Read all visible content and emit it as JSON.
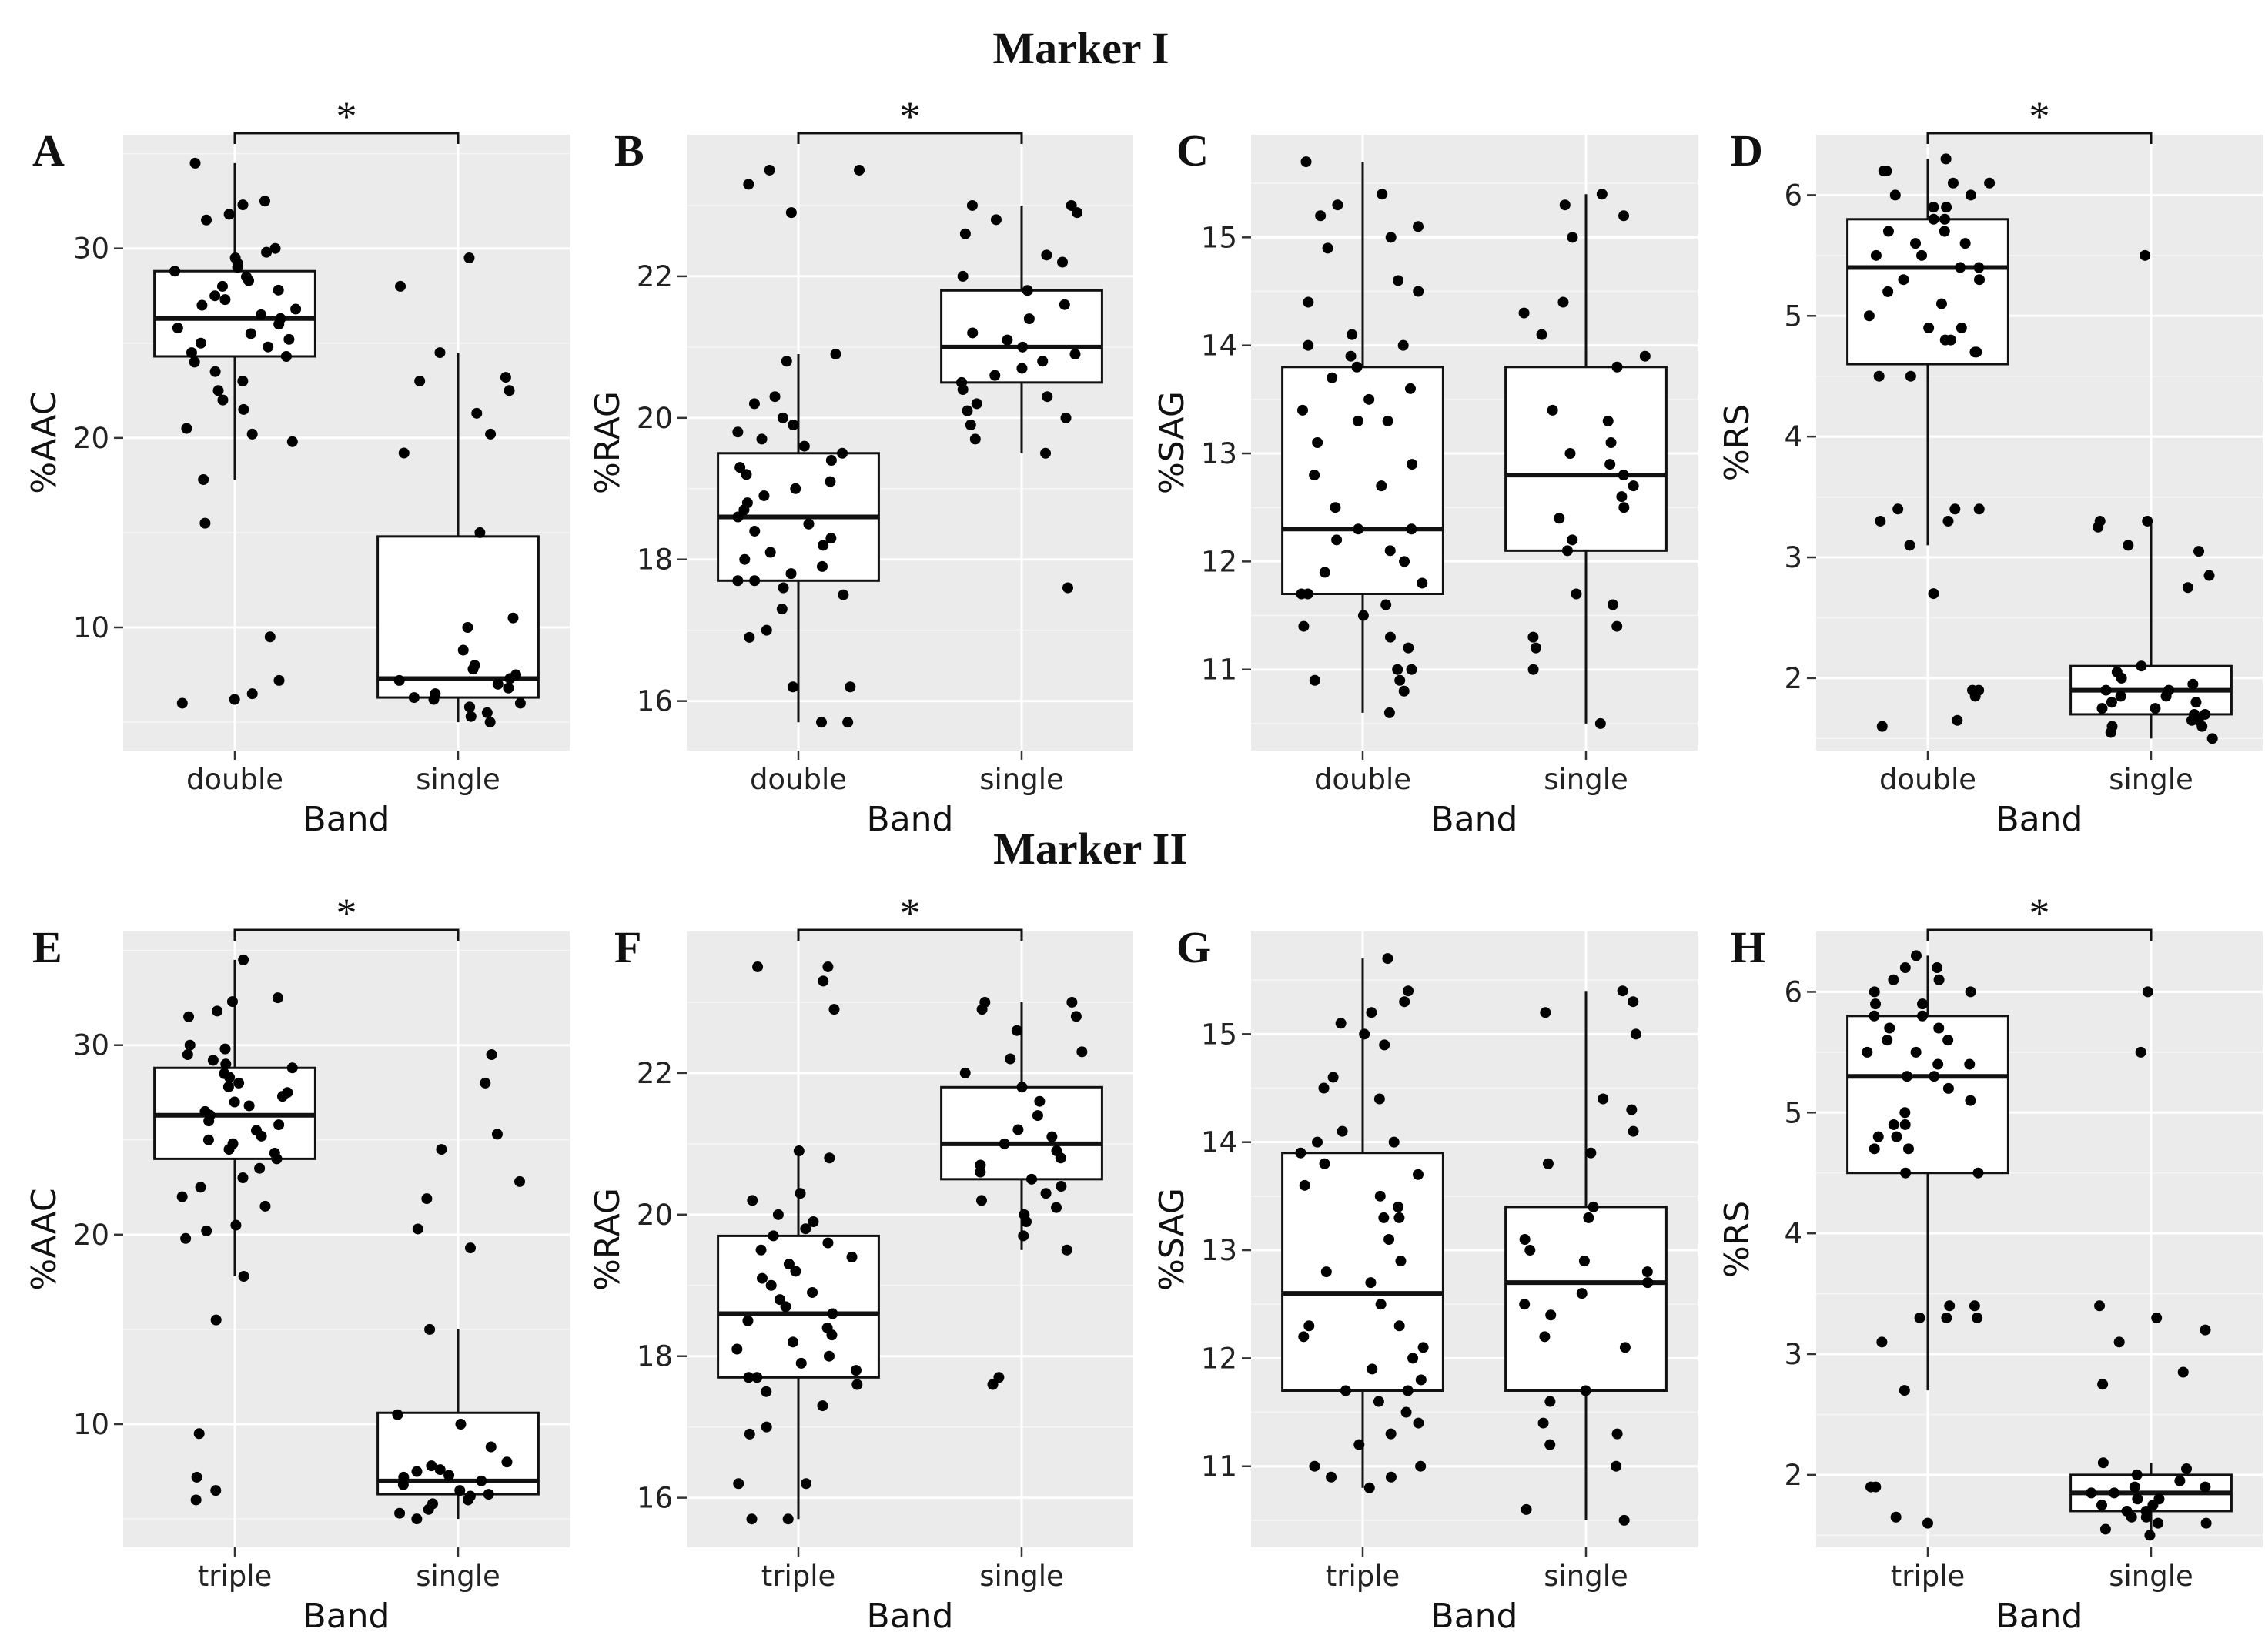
{
  "titles": {
    "marker1": "Marker I",
    "marker2": "Marker II"
  },
  "chart_data": [
    {
      "type": "box",
      "panel": "A",
      "row": 0,
      "col": 0,
      "ylabel": "%AAC",
      "xlabel": "Band",
      "categories": [
        "double",
        "single"
      ],
      "ylim": [
        3.5,
        36
      ],
      "yticks": [
        10,
        20,
        30
      ],
      "significance": "*",
      "boxes": [
        {
          "min": 17.8,
          "q1": 24.3,
          "median": 26.3,
          "q3": 28.8,
          "max": 34.5
        },
        {
          "min": 5.0,
          "q1": 6.3,
          "median": 7.3,
          "q3": 14.8,
          "max": 24.5
        }
      ],
      "points": [
        [
          34.5,
          32.5,
          32.3,
          31.8,
          31.5,
          30.0,
          29.8,
          29.5,
          29.2,
          29.0,
          28.8,
          28.5,
          28.3,
          28.0,
          27.8,
          27.5,
          27.3,
          27.0,
          26.8,
          26.5,
          26.3,
          26.0,
          25.8,
          25.5,
          25.2,
          25.0,
          24.8,
          24.5,
          24.3,
          24.0,
          23.5,
          23.0,
          22.5,
          22.0,
          21.5,
          20.5,
          20.2,
          19.8,
          17.8,
          15.5,
          9.5,
          7.2,
          6.5,
          6.0,
          6.2
        ],
        [
          29.5,
          28.0,
          24.5,
          23.2,
          23.0,
          22.5,
          21.3,
          20.2,
          19.2,
          15.0,
          10.5,
          10.0,
          8.8,
          8.0,
          7.8,
          7.5,
          7.3,
          7.2,
          7.0,
          6.8,
          6.5,
          6.3,
          6.0,
          5.8,
          5.5,
          5.3,
          5.0,
          5.8,
          6.2
        ]
      ]
    },
    {
      "type": "box",
      "panel": "B",
      "row": 0,
      "col": 1,
      "ylabel": "%RAG",
      "xlabel": "Band",
      "categories": [
        "double",
        "single"
      ],
      "ylim": [
        15.3,
        24.0
      ],
      "yticks": [
        16,
        18,
        20,
        22
      ],
      "significance": "*",
      "boxes": [
        {
          "min": 15.7,
          "q1": 17.7,
          "median": 18.6,
          "q3": 19.5,
          "max": 20.9
        },
        {
          "min": 19.5,
          "q1": 20.5,
          "median": 21.0,
          "q3": 21.8,
          "max": 23.0
        }
      ],
      "points": [
        [
          23.5,
          23.5,
          23.3,
          22.9,
          20.9,
          20.8,
          20.3,
          20.2,
          20.0,
          19.9,
          19.8,
          19.7,
          19.6,
          19.5,
          19.4,
          19.3,
          19.2,
          19.1,
          19.0,
          18.9,
          18.8,
          18.7,
          18.6,
          18.5,
          18.4,
          18.3,
          18.2,
          18.1,
          18.0,
          17.9,
          17.8,
          17.7,
          17.7,
          17.6,
          17.5,
          17.3,
          17.0,
          16.9,
          16.2,
          16.2,
          15.7,
          15.7
        ],
        [
          23.0,
          23.0,
          22.9,
          22.8,
          22.6,
          22.3,
          22.2,
          22.0,
          21.8,
          21.6,
          21.4,
          21.2,
          21.1,
          21.0,
          20.9,
          20.8,
          20.7,
          20.6,
          20.5,
          20.4,
          20.3,
          20.2,
          20.1,
          20.0,
          19.9,
          19.7,
          19.5,
          17.6
        ]
      ]
    },
    {
      "type": "box",
      "panel": "C",
      "row": 0,
      "col": 2,
      "ylabel": "%SAG",
      "xlabel": "Band",
      "categories": [
        "double",
        "single"
      ],
      "ylim": [
        10.25,
        15.95
      ],
      "yticks": [
        11,
        12,
        13,
        14,
        15
      ],
      "significance": "",
      "boxes": [
        {
          "min": 10.6,
          "q1": 11.7,
          "median": 12.3,
          "q3": 13.8,
          "max": 15.7
        },
        {
          "min": 10.5,
          "q1": 12.1,
          "median": 12.8,
          "q3": 13.8,
          "max": 15.4
        }
      ],
      "points": [
        [
          15.7,
          15.4,
          15.3,
          15.2,
          15.1,
          15.0,
          14.9,
          14.6,
          14.5,
          14.4,
          14.1,
          14.0,
          14.0,
          13.9,
          13.8,
          13.7,
          13.6,
          13.5,
          13.4,
          13.3,
          13.3,
          13.1,
          12.9,
          12.8,
          12.7,
          12.5,
          12.3,
          12.3,
          12.2,
          12.1,
          12.0,
          11.9,
          11.8,
          11.7,
          11.7,
          11.6,
          11.5,
          11.4,
          11.3,
          11.2,
          11.0,
          11.0,
          10.9,
          10.9,
          10.8,
          10.6
        ],
        [
          15.4,
          15.3,
          15.2,
          15.0,
          14.4,
          14.3,
          14.1,
          13.9,
          13.8,
          13.4,
          13.3,
          13.1,
          13.0,
          12.9,
          12.8,
          12.7,
          12.6,
          12.5,
          12.4,
          12.2,
          12.1,
          11.7,
          11.6,
          11.4,
          11.3,
          11.2,
          11.0,
          10.5
        ]
      ]
    },
    {
      "type": "box",
      "panel": "D",
      "row": 0,
      "col": 3,
      "ylabel": "%RS",
      "xlabel": "Band",
      "categories": [
        "double",
        "single"
      ],
      "ylim": [
        1.4,
        6.5
      ],
      "yticks": [
        2,
        3,
        4,
        5,
        6
      ],
      "significance": "*",
      "boxes": [
        {
          "min": 3.1,
          "q1": 4.6,
          "median": 5.4,
          "q3": 5.8,
          "max": 6.3
        },
        {
          "min": 1.5,
          "q1": 1.7,
          "median": 1.9,
          "q3": 2.1,
          "max": 3.3
        }
      ],
      "points": [
        [
          6.3,
          6.2,
          6.2,
          6.1,
          6.1,
          6.0,
          6.0,
          5.9,
          5.9,
          5.8,
          5.8,
          5.7,
          5.7,
          5.6,
          5.6,
          5.5,
          5.5,
          5.4,
          5.4,
          5.3,
          5.3,
          5.2,
          5.1,
          5.0,
          4.9,
          4.9,
          4.8,
          4.8,
          4.7,
          4.7,
          4.5,
          4.5,
          3.4,
          3.4,
          3.4,
          3.3,
          3.3,
          3.1,
          2.7,
          1.9,
          1.9,
          1.85,
          1.65,
          1.6
        ],
        [
          5.5,
          3.3,
          3.3,
          3.25,
          3.1,
          3.05,
          2.85,
          2.75,
          2.1,
          2.05,
          2.0,
          1.95,
          1.9,
          1.9,
          1.85,
          1.85,
          1.8,
          1.8,
          1.75,
          1.75,
          1.7,
          1.7,
          1.65,
          1.65,
          1.6,
          1.6,
          1.55,
          1.5
        ]
      ]
    },
    {
      "type": "box",
      "panel": "E",
      "row": 1,
      "col": 0,
      "ylabel": "%AAC",
      "xlabel": "Band",
      "categories": [
        "triple",
        "single"
      ],
      "ylim": [
        3.5,
        36
      ],
      "yticks": [
        10,
        20,
        30
      ],
      "significance": "*",
      "boxes": [
        {
          "min": 17.8,
          "q1": 24.0,
          "median": 26.3,
          "q3": 28.8,
          "max": 34.5
        },
        {
          "min": 5.0,
          "q1": 6.3,
          "median": 7.0,
          "q3": 10.6,
          "max": 15.0
        }
      ],
      "points": [
        [
          34.5,
          32.5,
          32.3,
          31.8,
          31.5,
          30.0,
          29.8,
          29.5,
          29.2,
          29.0,
          28.8,
          28.5,
          28.3,
          28.0,
          27.8,
          27.5,
          27.3,
          27.0,
          26.8,
          26.5,
          26.3,
          26.0,
          25.8,
          25.5,
          25.2,
          25.0,
          24.8,
          24.5,
          24.3,
          24.0,
          23.5,
          23.0,
          22.5,
          22.0,
          21.5,
          20.5,
          20.2,
          19.8,
          17.8,
          15.5,
          9.5,
          7.2,
          6.5,
          6.0
        ],
        [
          29.5,
          28.0,
          25.3,
          24.5,
          22.8,
          21.9,
          20.3,
          19.3,
          15.0,
          10.5,
          10.0,
          8.8,
          8.0,
          7.8,
          7.5,
          7.3,
          7.2,
          7.0,
          6.8,
          6.5,
          6.3,
          6.0,
          5.8,
          5.5,
          5.3,
          5.0,
          6.2,
          7.6
        ]
      ]
    },
    {
      "type": "box",
      "panel": "F",
      "row": 1,
      "col": 1,
      "ylabel": "%RAG",
      "xlabel": "Band",
      "categories": [
        "triple",
        "single"
      ],
      "ylim": [
        15.3,
        24.0
      ],
      "yticks": [
        16,
        18,
        20,
        22
      ],
      "significance": "*",
      "boxes": [
        {
          "min": 15.7,
          "q1": 17.7,
          "median": 18.6,
          "q3": 19.7,
          "max": 20.9
        },
        {
          "min": 19.5,
          "q1": 20.5,
          "median": 21.0,
          "q3": 21.8,
          "max": 23.0
        }
      ],
      "points": [
        [
          23.5,
          23.5,
          23.3,
          22.9,
          20.9,
          20.8,
          20.3,
          20.2,
          20.0,
          19.9,
          19.8,
          19.7,
          19.6,
          19.5,
          19.4,
          19.3,
          19.2,
          19.1,
          19.0,
          18.9,
          18.8,
          18.7,
          18.6,
          18.5,
          18.4,
          18.3,
          18.2,
          18.1,
          18.0,
          17.9,
          17.8,
          17.7,
          17.7,
          17.6,
          17.5,
          17.3,
          17.0,
          16.9,
          16.2,
          16.2,
          15.7,
          15.7
        ],
        [
          23.0,
          23.0,
          22.9,
          22.8,
          22.6,
          22.3,
          22.2,
          22.0,
          21.8,
          21.6,
          21.4,
          21.2,
          21.1,
          21.0,
          20.9,
          20.8,
          20.7,
          20.6,
          20.5,
          20.4,
          20.3,
          20.2,
          20.1,
          20.0,
          19.9,
          19.7,
          19.5,
          17.7,
          17.6
        ]
      ]
    },
    {
      "type": "box",
      "panel": "G",
      "row": 1,
      "col": 2,
      "ylabel": "%SAG",
      "xlabel": "Band",
      "categories": [
        "triple",
        "single"
      ],
      "ylim": [
        10.25,
        15.95
      ],
      "yticks": [
        11,
        12,
        13,
        14,
        15
      ],
      "significance": "",
      "boxes": [
        {
          "min": 10.8,
          "q1": 11.7,
          "median": 12.6,
          "q3": 13.9,
          "max": 15.7
        },
        {
          "min": 10.5,
          "q1": 11.7,
          "median": 12.7,
          "q3": 13.4,
          "max": 15.4
        }
      ],
      "points": [
        [
          15.7,
          15.4,
          15.3,
          15.2,
          15.1,
          15.0,
          14.9,
          14.6,
          14.5,
          14.4,
          14.1,
          14.0,
          14.0,
          13.9,
          13.8,
          13.7,
          13.6,
          13.5,
          13.4,
          13.3,
          13.3,
          13.1,
          12.9,
          12.8,
          12.7,
          12.5,
          12.3,
          12.3,
          12.2,
          12.1,
          12.0,
          11.9,
          11.8,
          11.7,
          11.7,
          11.6,
          11.5,
          11.4,
          11.3,
          11.2,
          11.0,
          11.0,
          10.9,
          10.9,
          10.8
        ],
        [
          15.4,
          15.3,
          15.2,
          15.0,
          14.4,
          14.3,
          14.1,
          13.9,
          13.8,
          13.4,
          13.3,
          13.1,
          13.0,
          12.9,
          12.8,
          12.7,
          12.6,
          12.5,
          12.4,
          12.2,
          12.1,
          11.7,
          11.6,
          11.4,
          11.3,
          11.2,
          11.0,
          10.6,
          10.5
        ]
      ]
    },
    {
      "type": "box",
      "panel": "H",
      "row": 1,
      "col": 3,
      "ylabel": "%RS",
      "xlabel": "Band",
      "categories": [
        "triple",
        "single"
      ],
      "ylim": [
        1.4,
        6.5
      ],
      "yticks": [
        2,
        3,
        4,
        5,
        6
      ],
      "significance": "*",
      "boxes": [
        {
          "min": 2.7,
          "q1": 4.5,
          "median": 5.3,
          "q3": 5.8,
          "max": 6.3
        },
        {
          "min": 1.5,
          "q1": 1.7,
          "median": 1.85,
          "q3": 2.0,
          "max": 2.1
        }
      ],
      "points": [
        [
          6.3,
          6.2,
          6.2,
          6.1,
          6.1,
          6.0,
          6.0,
          5.9,
          5.9,
          5.8,
          5.8,
          5.7,
          5.7,
          5.6,
          5.6,
          5.5,
          5.5,
          5.4,
          5.4,
          5.3,
          5.3,
          5.2,
          5.1,
          5.0,
          4.9,
          4.9,
          4.8,
          4.8,
          4.7,
          4.7,
          4.5,
          4.5,
          3.4,
          3.4,
          3.3,
          3.3,
          3.3,
          3.1,
          2.7,
          1.9,
          1.9,
          1.65,
          1.6
        ],
        [
          6.0,
          5.5,
          3.4,
          3.3,
          3.2,
          3.1,
          2.85,
          2.75,
          2.1,
          2.05,
          2.0,
          1.95,
          1.9,
          1.9,
          1.85,
          1.85,
          1.8,
          1.8,
          1.75,
          1.75,
          1.7,
          1.7,
          1.65,
          1.65,
          1.6,
          1.6,
          1.55,
          1.5
        ]
      ]
    }
  ]
}
